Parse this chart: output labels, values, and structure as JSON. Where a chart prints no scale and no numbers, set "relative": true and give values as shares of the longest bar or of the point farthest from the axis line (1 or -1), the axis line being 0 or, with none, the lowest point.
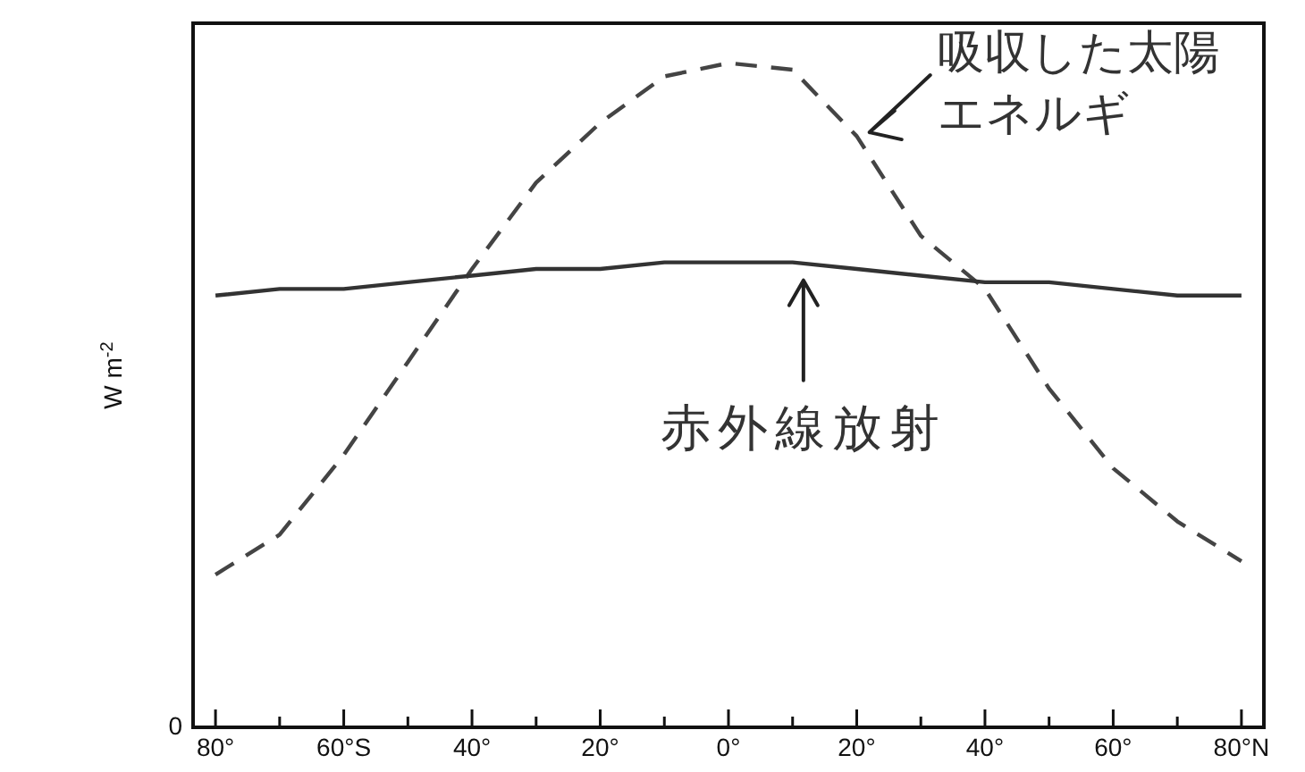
{
  "chart_data": {
    "type": "line",
    "ylabel": "W m$^{-2}$",
    "relative": true,
    "legend": false,
    "grid": false,
    "marker": "none",
    "categories": [
      "80°",
      null,
      "60°S",
      null,
      "40°",
      null,
      "20°",
      null,
      "0°",
      null,
      "20°",
      null,
      "40°",
      null,
      "60°",
      null,
      "80°N"
    ],
    "series": [
      {
        "color": "#444444",
        "line_style": "dashed",
        "values": [
          0.23,
          0.29,
          0.41,
          0.55,
          0.69,
          0.82,
          0.91,
          0.98,
          1,
          0.99,
          0.89,
          0.74,
          0.66,
          0.51,
          0.39,
          0.31,
          0.25
        ]
      },
      {
        "color": "#333333",
        "line_style": "solid",
        "values": [
          0.65,
          0.66,
          0.66,
          0.67,
          0.68,
          0.69,
          0.69,
          0.7,
          0.7,
          0.7,
          0.69,
          0.68,
          0.67,
          0.67,
          0.66,
          0.65,
          0.65
        ]
      }
    ],
    "annotations": [
      "吸収した太陽エネルギ",
      "赤外線放射",
      "0"
    ]
  }
}
